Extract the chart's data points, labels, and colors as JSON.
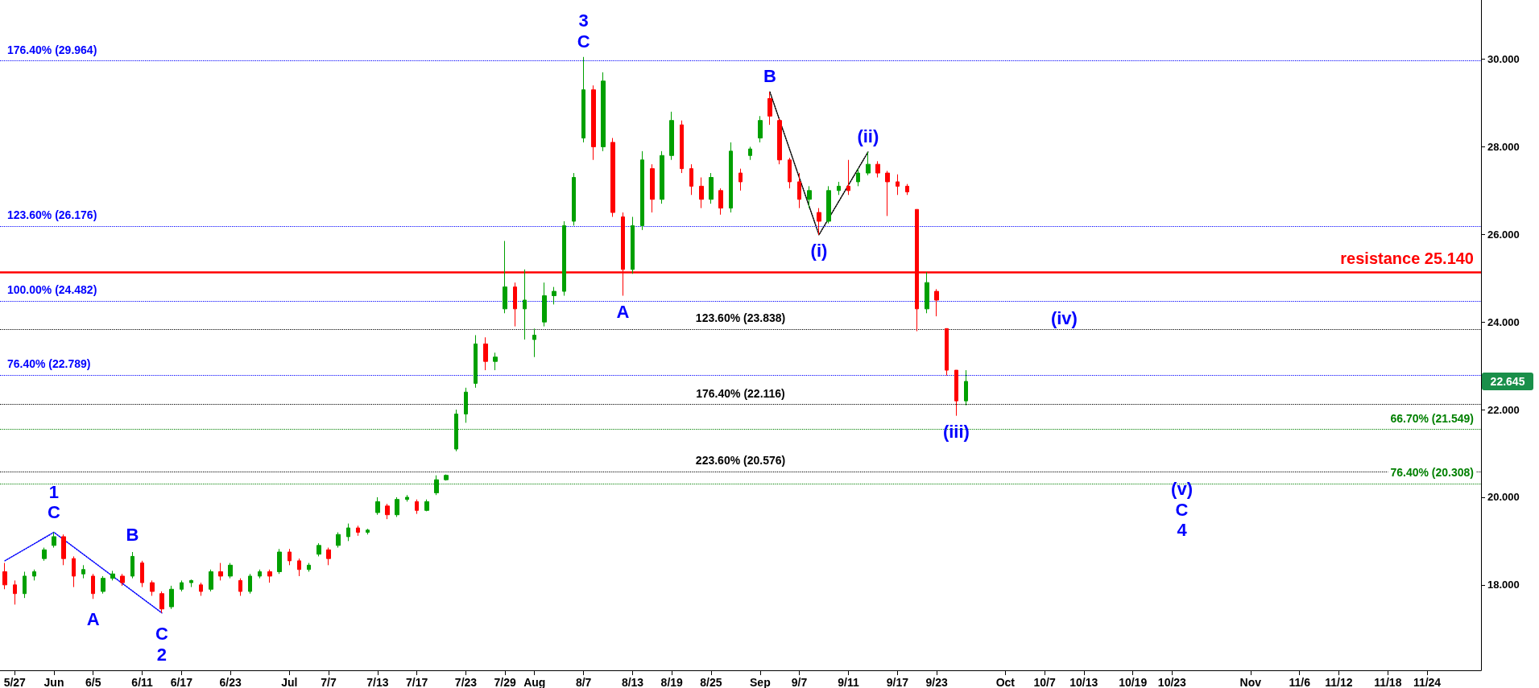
{
  "chart_data": {
    "type": "candlestick",
    "categories": [
      null,
      "5/27",
      null,
      null,
      null,
      "Jun",
      null,
      null,
      null,
      "6/5",
      null,
      null,
      null,
      null,
      "6/11",
      null,
      null,
      null,
      "6/17",
      null,
      null,
      null,
      null,
      "6/23",
      null,
      null,
      null,
      null,
      null,
      "Jul",
      null,
      null,
      null,
      "7/7",
      null,
      null,
      null,
      null,
      "7/13",
      null,
      null,
      null,
      "7/17",
      null,
      null,
      null,
      null,
      "7/23",
      null,
      null,
      null,
      "7/29",
      null,
      null,
      "Aug",
      null,
      null,
      null,
      null,
      "8/7",
      null,
      null,
      null,
      null,
      "8/13",
      null,
      null,
      null,
      "8/19",
      null,
      null,
      null,
      "8/25",
      null,
      null,
      null,
      null,
      "Sep",
      null,
      null,
      null,
      "9/7",
      null,
      null,
      null,
      null,
      "9/11",
      null,
      null,
      null,
      null,
      "9/17",
      null,
      null,
      null,
      "9/23",
      null,
      null,
      null,
      null,
      null,
      null,
      "Oct",
      null,
      null,
      null,
      "10/7",
      null,
      null,
      null,
      "10/13",
      null,
      null,
      null,
      null,
      "10/19",
      null,
      null,
      null,
      "10/23",
      null,
      null,
      null,
      null,
      null,
      null,
      null,
      "Nov",
      null,
      null,
      null,
      null,
      "11/6",
      null,
      null,
      null,
      "11/12",
      null,
      null,
      null,
      null,
      "11/18",
      null,
      null,
      null,
      "11/24",
      null,
      null,
      null,
      null,
      null
    ],
    "ylim": [
      16.05,
      31.35
    ],
    "yticks": [
      {
        "value": 18,
        "label": "18.000"
      },
      {
        "value": 20,
        "label": "20.000"
      },
      {
        "value": 22,
        "label": "22.000"
      },
      {
        "value": 24,
        "label": "24.000"
      },
      {
        "value": 26,
        "label": "26.000"
      },
      {
        "value": 28,
        "label": "28.000"
      },
      {
        "value": 30,
        "label": "30.000"
      }
    ],
    "series": [
      {
        "ohlc": [
          [
            18.3,
            18.5,
            17.9,
            18.0
          ],
          [
            18.0,
            18.1,
            17.55,
            17.8
          ],
          [
            17.8,
            18.3,
            17.7,
            18.2
          ],
          [
            18.2,
            18.35,
            18.1,
            18.3
          ],
          [
            18.6,
            18.85,
            18.55,
            18.8
          ],
          [
            18.9,
            19.2,
            18.85,
            19.1
          ],
          [
            19.1,
            19.15,
            18.45,
            18.6
          ],
          [
            18.6,
            18.65,
            17.95,
            18.2
          ],
          [
            18.25,
            18.45,
            18.15,
            18.35
          ],
          [
            18.2,
            18.25,
            17.68,
            17.8
          ],
          [
            17.85,
            18.2,
            17.8,
            18.15
          ],
          [
            18.15,
            18.32,
            18.1,
            18.25
          ],
          [
            18.2,
            18.25,
            17.98,
            18.05
          ],
          [
            18.2,
            18.75,
            18.15,
            18.65
          ],
          [
            18.5,
            18.55,
            17.95,
            18.05
          ],
          [
            18.05,
            18.1,
            17.75,
            17.85
          ],
          [
            17.8,
            17.85,
            17.36,
            17.45
          ],
          [
            17.5,
            17.98,
            17.45,
            17.9
          ],
          [
            17.9,
            18.1,
            17.85,
            18.05
          ],
          [
            18.05,
            18.12,
            17.95,
            18.1
          ],
          [
            18.0,
            18.05,
            17.75,
            17.85
          ],
          [
            17.9,
            18.35,
            17.85,
            18.3
          ],
          [
            18.3,
            18.5,
            18.1,
            18.2
          ],
          [
            18.2,
            18.5,
            18.15,
            18.45
          ],
          [
            18.1,
            18.15,
            17.75,
            17.85
          ],
          [
            17.85,
            18.25,
            17.8,
            18.2
          ],
          [
            18.2,
            18.35,
            18.15,
            18.3
          ],
          [
            18.3,
            18.35,
            18.05,
            18.2
          ],
          [
            18.3,
            18.82,
            18.25,
            18.75
          ],
          [
            18.75,
            18.82,
            18.45,
            18.55
          ],
          [
            18.55,
            18.6,
            18.2,
            18.35
          ],
          [
            18.35,
            18.5,
            18.3,
            18.45
          ],
          [
            18.7,
            18.95,
            18.65,
            18.9
          ],
          [
            18.8,
            18.85,
            18.45,
            18.6
          ],
          [
            18.9,
            19.2,
            18.85,
            19.15
          ],
          [
            19.1,
            19.4,
            19.0,
            19.3
          ],
          [
            19.3,
            19.35,
            19.12,
            19.2
          ],
          [
            19.2,
            19.28,
            19.15,
            19.25
          ],
          [
            19.65,
            20.0,
            19.6,
            19.9
          ],
          [
            19.8,
            19.85,
            19.5,
            19.6
          ],
          [
            19.6,
            20.0,
            19.55,
            19.95
          ],
          [
            19.95,
            20.05,
            19.9,
            20.0
          ],
          [
            19.9,
            19.95,
            19.62,
            19.7
          ],
          [
            19.7,
            19.95,
            19.68,
            19.9
          ],
          [
            20.1,
            20.5,
            20.05,
            20.4
          ],
          [
            20.4,
            20.52,
            20.38,
            20.5
          ],
          [
            21.1,
            22.0,
            21.05,
            21.9
          ],
          [
            21.9,
            22.5,
            21.7,
            22.4
          ],
          [
            22.6,
            23.7,
            22.5,
            23.5
          ],
          [
            23.5,
            23.65,
            22.9,
            23.1
          ],
          [
            23.1,
            23.3,
            22.9,
            23.2
          ],
          [
            24.3,
            25.85,
            24.2,
            24.8
          ],
          [
            24.8,
            24.9,
            23.9,
            24.3
          ],
          [
            24.3,
            25.2,
            23.6,
            24.5
          ],
          [
            23.6,
            23.85,
            23.2,
            23.7
          ],
          [
            24.0,
            24.9,
            23.9,
            24.6
          ],
          [
            24.6,
            24.8,
            24.4,
            24.7
          ],
          [
            24.7,
            26.3,
            24.6,
            26.2
          ],
          [
            26.3,
            27.4,
            26.2,
            27.3
          ],
          [
            28.2,
            30.05,
            28.1,
            29.3
          ],
          [
            29.3,
            29.4,
            27.7,
            28.0
          ],
          [
            28.0,
            29.7,
            27.9,
            29.5
          ],
          [
            28.1,
            28.2,
            26.4,
            26.5
          ],
          [
            26.4,
            26.5,
            24.6,
            25.2
          ],
          [
            25.2,
            26.4,
            25.1,
            26.2
          ],
          [
            26.2,
            27.9,
            26.1,
            27.7
          ],
          [
            27.5,
            27.6,
            26.5,
            26.8
          ],
          [
            26.8,
            27.9,
            26.7,
            27.8
          ],
          [
            27.8,
            28.8,
            27.7,
            28.6
          ],
          [
            28.5,
            28.6,
            27.4,
            27.5
          ],
          [
            27.5,
            27.6,
            26.9,
            27.1
          ],
          [
            27.1,
            27.3,
            26.6,
            26.8
          ],
          [
            26.8,
            27.4,
            26.7,
            27.3
          ],
          [
            27.0,
            27.05,
            26.45,
            26.6
          ],
          [
            26.6,
            28.1,
            26.5,
            27.9
          ],
          [
            27.4,
            27.5,
            27.0,
            27.2
          ],
          [
            27.8,
            28.0,
            27.7,
            27.95
          ],
          [
            28.2,
            28.7,
            28.1,
            28.6
          ],
          [
            29.1,
            29.25,
            28.5,
            28.7
          ],
          [
            28.6,
            28.65,
            27.6,
            27.7
          ],
          [
            27.7,
            27.75,
            27.05,
            27.2
          ],
          [
            27.2,
            27.4,
            26.6,
            26.8
          ],
          [
            26.8,
            27.1,
            26.6,
            27.0
          ],
          [
            26.5,
            26.6,
            25.99,
            26.3
          ],
          [
            26.3,
            27.1,
            26.25,
            27.0
          ],
          [
            27.0,
            27.2,
            26.9,
            27.1
          ],
          [
            27.1,
            27.7,
            26.9,
            27.0
          ],
          [
            27.2,
            27.5,
            27.1,
            27.4
          ],
          [
            27.4,
            27.88,
            27.35,
            27.6
          ],
          [
            27.6,
            27.67,
            27.3,
            27.4
          ],
          [
            27.4,
            27.45,
            26.42,
            27.2
          ],
          [
            27.2,
            27.37,
            26.9,
            27.1
          ],
          [
            27.1,
            27.15,
            26.9,
            26.97
          ],
          [
            26.57,
            26.57,
            23.79,
            24.3
          ],
          [
            24.3,
            25.14,
            24.2,
            24.9
          ],
          [
            24.7,
            24.75,
            24.13,
            24.5
          ],
          [
            23.85,
            23.85,
            22.78,
            22.9
          ],
          [
            22.9,
            22.9,
            21.86,
            22.2
          ],
          [
            22.2,
            22.9,
            22.1,
            22.645
          ],
          null,
          null,
          null,
          null,
          null,
          null,
          null,
          null,
          null,
          null,
          null,
          null,
          null,
          null,
          null,
          null,
          null,
          null,
          null,
          null,
          null,
          null,
          null,
          null,
          null,
          null,
          null,
          null,
          null,
          null,
          null,
          null,
          null,
          null,
          null,
          null,
          null,
          null,
          null,
          null,
          null,
          null,
          null,
          null,
          null,
          null,
          null,
          null,
          null,
          null,
          null,
          null
        ],
        "colors": [
          "#ff0000",
          "#ff0000",
          "#00a000",
          "#00a000",
          "#00a000",
          "#00a000",
          "#ff0000",
          "#ff0000",
          "#00a000",
          "#ff0000",
          "#00a000",
          "#00a000",
          "#ff0000",
          "#00a000",
          "#ff0000",
          "#ff0000",
          "#ff0000",
          "#00a000",
          "#00a000",
          "#00a000",
          "#ff0000",
          "#00a000",
          "#ff0000",
          "#00a000",
          "#ff0000",
          "#00a000",
          "#00a000",
          "#ff0000",
          "#00a000",
          "#ff0000",
          "#ff0000",
          "#00a000",
          "#00a000",
          "#ff0000",
          "#00a000",
          "#00a000",
          "#ff0000",
          "#00a000",
          "#00a000",
          "#ff0000",
          "#00a000",
          "#00a000",
          "#ff0000",
          "#00a000",
          "#00a000",
          "#00a000",
          "#00a000",
          "#00a000",
          "#00a000",
          "#ff0000",
          "#00a000",
          "#00a000",
          "#ff0000",
          "#00a000",
          "#00a000",
          "#00a000",
          "#00a000",
          "#00a000",
          "#00a000",
          "#00a000",
          "#ff0000",
          "#00a000",
          "#ff0000",
          "#ff0000",
          "#00a000",
          "#00a000",
          "#ff0000",
          "#00a000",
          "#00a000",
          "#ff0000",
          "#ff0000",
          "#ff0000",
          "#00a000",
          "#ff0000",
          "#00a000",
          "#ff0000",
          "#00a000",
          "#00a000",
          "#ff0000",
          "#ff0000",
          "#ff0000",
          "#ff0000",
          "#00a000",
          "#ff0000",
          "#00a000",
          "#00a000",
          "#ff0000",
          "#00a000",
          "#00a000",
          "#ff0000",
          "#ff0000",
          "#ff0000",
          "#ff0000",
          "#ff0000",
          "#00a000",
          "#ff0000",
          "#ff0000",
          "#ff0000",
          "#00a000",
          null,
          null,
          null,
          null,
          null,
          null,
          null,
          null,
          null,
          null,
          null,
          null,
          null,
          null,
          null,
          null,
          null,
          null,
          null,
          null,
          null,
          null,
          null,
          null,
          null,
          null,
          null,
          null,
          null,
          null,
          null,
          null,
          null,
          null,
          null,
          null,
          null,
          null,
          null,
          null,
          null,
          null,
          null,
          null,
          null,
          null,
          null,
          null,
          null,
          null,
          null,
          null
        ]
      },
      {
        "type": "line",
        "color": "#0000ff",
        "line_style": "dotted",
        "marker": "none",
        "values": [
          18.55,
          null,
          null,
          null,
          null,
          19.2,
          null,
          null,
          null,
          null,
          null,
          null,
          null,
          null,
          null,
          null,
          17.36,
          null,
          null,
          null,
          null,
          null,
          null,
          null,
          null,
          null,
          null,
          null,
          null,
          null,
          null,
          null,
          null,
          null,
          null,
          null,
          null,
          null,
          null,
          null,
          null,
          null,
          null,
          null,
          null,
          null,
          null,
          null,
          null,
          null,
          null,
          null,
          null,
          null,
          null,
          null,
          null,
          null,
          null,
          null,
          null,
          null,
          null,
          null,
          null,
          null,
          null,
          null,
          null,
          null,
          null,
          null,
          null,
          null,
          null,
          null,
          null,
          null,
          null,
          null,
          null,
          null,
          null,
          null,
          null,
          null,
          null,
          null,
          null,
          null,
          null,
          null,
          null,
          null,
          null,
          null,
          null,
          null,
          null,
          null,
          null,
          null,
          null,
          null,
          null,
          null,
          null,
          null,
          null,
          null,
          null,
          null,
          null,
          null,
          null,
          null,
          null,
          null,
          null,
          null,
          null,
          null,
          null,
          null,
          null,
          null,
          null,
          null,
          null,
          null,
          null,
          null,
          null,
          null,
          null,
          null,
          null,
          null,
          null,
          null,
          null,
          null,
          null,
          null,
          null,
          null,
          null,
          null,
          null,
          null,
          null
        ]
      },
      {
        "type": "line",
        "color": "#000000",
        "line_style": "dotted",
        "marker": "none",
        "values": [
          null,
          null,
          null,
          null,
          null,
          null,
          null,
          null,
          null,
          null,
          null,
          null,
          null,
          null,
          null,
          null,
          null,
          null,
          null,
          null,
          null,
          null,
          null,
          null,
          null,
          null,
          null,
          null,
          null,
          null,
          null,
          null,
          null,
          null,
          null,
          null,
          null,
          null,
          null,
          null,
          null,
          null,
          null,
          null,
          null,
          null,
          null,
          null,
          null,
          null,
          null,
          null,
          null,
          null,
          null,
          null,
          null,
          null,
          null,
          null,
          null,
          null,
          null,
          null,
          null,
          null,
          null,
          null,
          null,
          null,
          null,
          null,
          null,
          null,
          null,
          null,
          null,
          null,
          29.25,
          null,
          null,
          null,
          null,
          25.99,
          null,
          null,
          null,
          null,
          27.88,
          null,
          null,
          null,
          null,
          null,
          null,
          null,
          null,
          null,
          null,
          null,
          null,
          null,
          null,
          null,
          null,
          null,
          null,
          null,
          null,
          null,
          null,
          null,
          null,
          null,
          null,
          null,
          null,
          null,
          null,
          null,
          null,
          null,
          null,
          null,
          null,
          null,
          null,
          null,
          null,
          null,
          null,
          null,
          null,
          null,
          null,
          null,
          null,
          null,
          null,
          null,
          null,
          null,
          null,
          null,
          null,
          null,
          null,
          null,
          null,
          null,
          null
        ]
      }
    ],
    "ref_lines": [
      {
        "axis": "y",
        "value": 29.964,
        "label": "176.40% (29.964)",
        "color": "#0000ff",
        "line_style": "dotted"
      },
      {
        "axis": "y",
        "value": 21.549,
        "label": "66.70% (21.549)",
        "color": "#008000",
        "line_style": "dotted"
      },
      {
        "axis": "y",
        "value": 23.838,
        "label": "123.60% (23.838)",
        "color": "#000000",
        "line_style": "dotted"
      },
      {
        "axis": "y",
        "value": 26.176,
        "label": "123.60% (26.176)",
        "color": "#0000ff",
        "line_style": "dotted"
      },
      {
        "axis": "y",
        "value": 20.308,
        "label": "76.40% (20.308)",
        "color": "#008000",
        "line_style": "dotted"
      },
      {
        "axis": "y",
        "value": 22.116,
        "label": "176.40% (22.116)",
        "color": "#000000",
        "line_style": "dotted"
      },
      {
        "axis": "y",
        "value": 24.482,
        "label": "100.00% (24.482)",
        "color": "#0000ff",
        "line_style": "dotted"
      },
      {
        "axis": "y",
        "value": 25.14,
        "label": "resistance 25.140",
        "color": "#ff0000",
        "line_style": "solid"
      },
      {
        "axis": "y",
        "value": 20.576,
        "label": "223.60% (20.576)",
        "color": "#000000",
        "line_style": "dotted"
      },
      {
        "axis": "y",
        "value": 22.789,
        "label": "76.40% (22.789)",
        "color": "#0000ff",
        "line_style": "dotted"
      }
    ],
    "annotations": [
      "1",
      "C",
      "A",
      "B",
      "C",
      "2",
      "3",
      "C",
      "A",
      "B",
      "(i)",
      "(ii)",
      "(iii)",
      "(iv)",
      "(v)",
      "C",
      "4",
      "22.645"
    ],
    "grid": false
  }
}
